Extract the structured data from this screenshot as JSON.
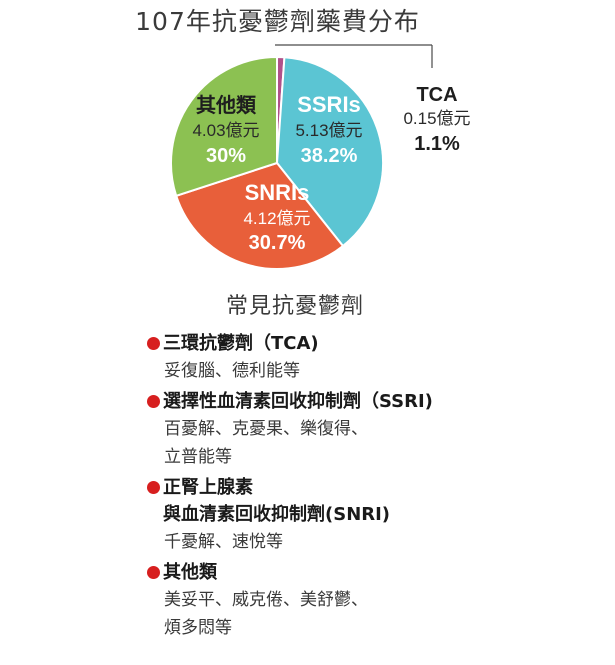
{
  "chart_data": {
    "type": "pie",
    "title": "107年抗憂鬱劑藥費分布",
    "unit": "億元",
    "slices": [
      {
        "name": "TCA",
        "value": 0.15,
        "value_label": "0.15億元",
        "percent": 1.1,
        "percent_label": "1.1%",
        "color": "#b0508a"
      },
      {
        "name": "SSRIs",
        "value": 5.13,
        "value_label": "5.13億元",
        "percent": 38.2,
        "percent_label": "38.2%",
        "color": "#5bc5d3"
      },
      {
        "name": "SNRIs",
        "value": 4.12,
        "value_label": "4.12億元",
        "percent": 30.7,
        "percent_label": "30.7%",
        "color": "#e85f3a"
      },
      {
        "name": "其他類",
        "value": 4.03,
        "value_label": "4.03億元",
        "percent": 30.0,
        "percent_label": "30%",
        "color": "#8cc152"
      }
    ]
  },
  "list": {
    "title": "常見抗憂鬱劑",
    "bullet_color": "#d71f1f",
    "categories": [
      {
        "heading": "三環抗鬱劑（TCA)",
        "subheading": "",
        "drugs": [
          "妥復腦、德利能等"
        ]
      },
      {
        "heading": "選擇性血清素回收抑制劑（SSRI)",
        "subheading": "",
        "drugs": [
          "百憂解、克憂果、樂復得、",
          "立普能等"
        ]
      },
      {
        "heading": "正腎上腺素",
        "subheading": "與血清素回收抑制劑(SNRI)",
        "drugs": [
          "千憂解、速悅等"
        ]
      },
      {
        "heading": "其他類",
        "subheading": "",
        "drugs": [
          "美妥平、威克倦、美舒鬱、",
          "煩多悶等"
        ]
      }
    ]
  }
}
